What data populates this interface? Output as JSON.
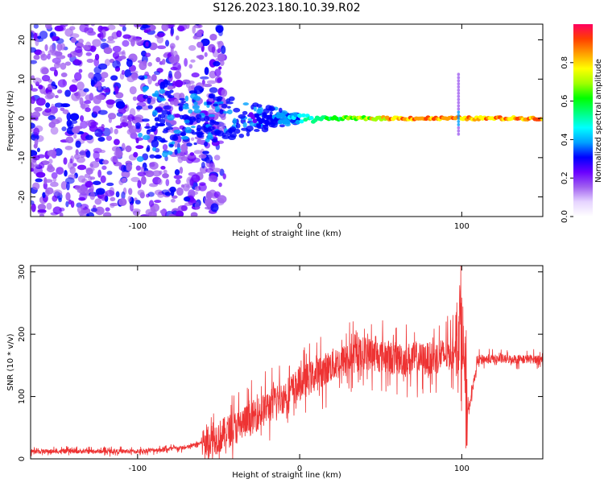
{
  "figure": {
    "title": "S126.2023.180.10.39.R02"
  },
  "colors": {
    "snr_line": "#ee3333",
    "axis": "#000000"
  },
  "chart_data": [
    {
      "type": "heatmap",
      "xlabel": "Height of straight line (km)",
      "ylabel": "Frequency (Hz)",
      "xlim": [
        -166,
        150
      ],
      "ylim": [
        -25,
        24
      ],
      "x_ticks": [
        -100,
        0,
        100
      ],
      "y_ticks": [
        -20,
        -10,
        0,
        10,
        20
      ],
      "x_tick_labels": [
        "-100",
        "0",
        "100"
      ],
      "y_tick_labels": [
        "-20",
        "-10",
        "0",
        "10",
        "20"
      ],
      "colorbar": {
        "label": "Normalized spectral amplitude",
        "range": [
          0,
          1
        ],
        "ticks": [
          0.0,
          0.2,
          0.4,
          0.6,
          0.8
        ],
        "tick_labels": [
          "0.0",
          "0.2",
          "0.4",
          "0.6",
          "0.8"
        ],
        "colormap": [
          "#ffffff",
          "#e6d4ff",
          "#a060f0",
          "#6a00ff",
          "#0000ff",
          "#00a0ff",
          "#00ffff",
          "#00ff80",
          "#00ff00",
          "#a0ff00",
          "#ffff00",
          "#ffa000",
          "#ff4000",
          "#ff0060"
        ]
      },
      "description_features": {
        "noise_region_x": [
          -166,
          -50
        ],
        "signal_ridge": {
          "x_start": 0,
          "x_end": 150,
          "frequency": 0,
          "peak_amplitude": 1.0
        },
        "spike_x": 98
      }
    },
    {
      "type": "line",
      "xlabel": "Height of straight line (km)",
      "ylabel": "SNR (10 * v/v)",
      "xlim": [
        -166,
        150
      ],
      "ylim": [
        0,
        310
      ],
      "x_ticks": [
        -100,
        0,
        100
      ],
      "y_ticks": [
        0,
        100,
        200,
        300
      ],
      "x_tick_labels": [
        "-100",
        "0",
        "100"
      ],
      "y_tick_labels": [
        "0",
        "100",
        "200",
        "300"
      ],
      "trend": {
        "x": [
          -166,
          -100,
          -70,
          -50,
          -30,
          -10,
          0,
          20,
          40,
          60,
          80,
          95,
          100,
          103,
          110,
          150
        ],
        "y": [
          12,
          12,
          18,
          35,
          65,
          100,
          120,
          150,
          170,
          160,
          160,
          170,
          230,
          60,
          160,
          160
        ]
      }
    }
  ]
}
